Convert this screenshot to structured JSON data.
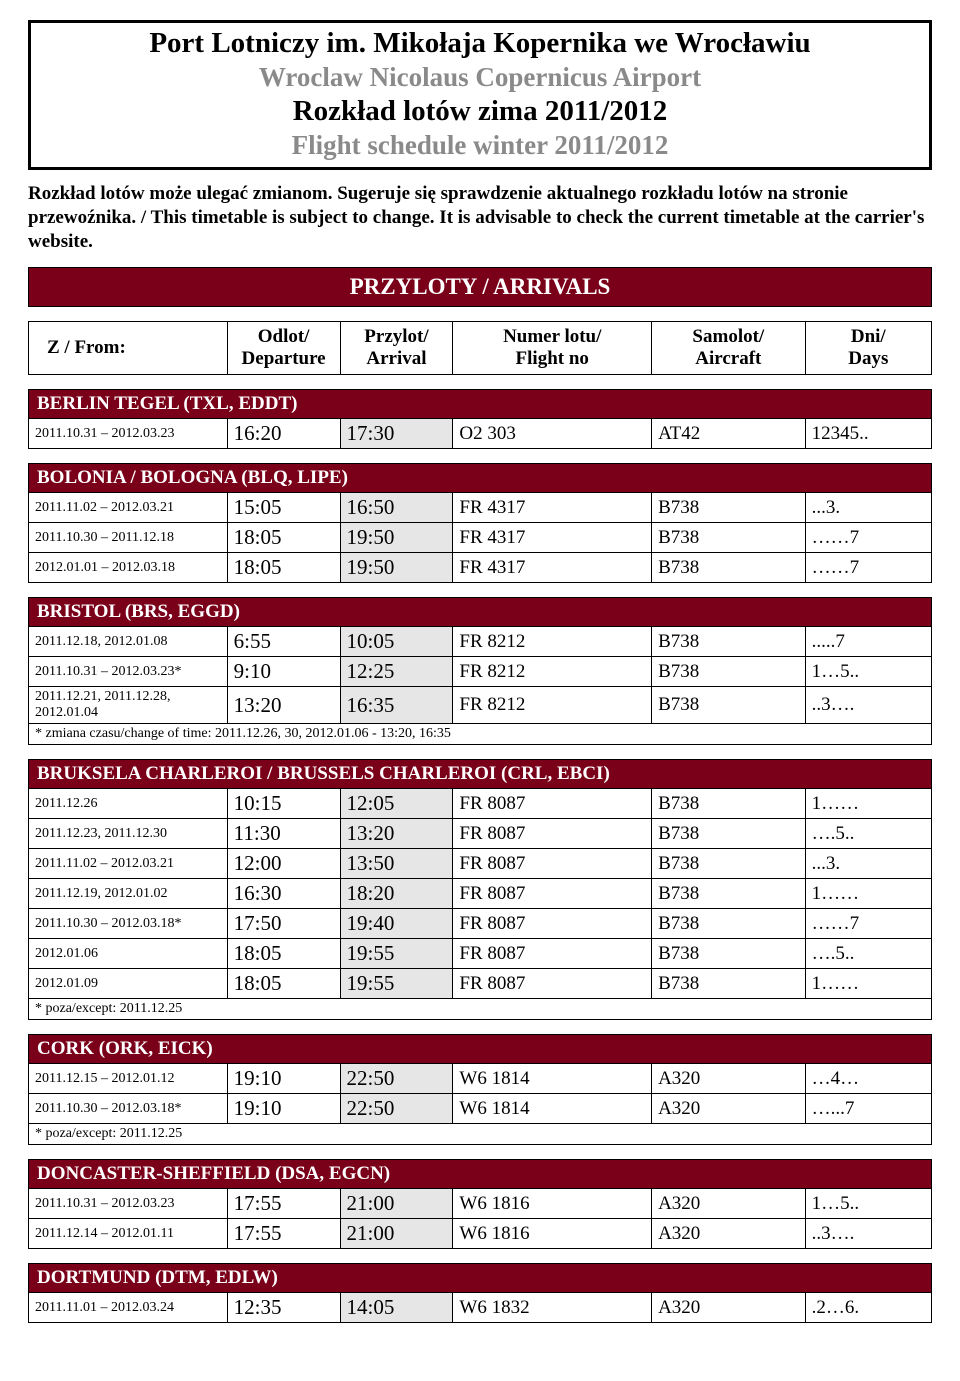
{
  "header": {
    "line1": "Port Lotniczy im. Mikołaja Kopernika we Wrocławiu",
    "line2": "Wroclaw Nicolaus Copernicus Airport",
    "line3": "Rozkład lotów zima 2011/2012",
    "line4": "Flight schedule winter 2011/2012"
  },
  "disclaimer": "Rozkład lotów może ulegać zmianom. Sugeruje się sprawdzenie aktualnego rozkładu lotów na stronie przewoźnika. / This timetable is subject to change. It is advisable to check the current timetable at the carrier's website.",
  "banner": "PRZYLOTY / ARRIVALS",
  "columns": {
    "from": "Z / From:",
    "dep1": "Odlot/",
    "dep2": "Departure",
    "arr1": "Przylot/",
    "arr2": "Arrival",
    "fno1": "Numer lotu/",
    "fno2": "Flight no",
    "ac1": "Samolot/",
    "ac2": "Aircraft",
    "day1": "Dni/",
    "day2": "Days"
  },
  "sections": [
    {
      "title": "BERLIN TEGEL (TXL, EDDT)",
      "rows": [
        {
          "date": "2011.10.31 – 2012.03.23",
          "dep": "16:20",
          "arr": "17:30",
          "fno": "O2 303",
          "ac": "AT42",
          "days": "12345.."
        }
      ]
    },
    {
      "title": "BOLONIA / BOLOGNA (BLQ, LIPE)",
      "rows": [
        {
          "date": "2011.11.02 – 2012.03.21",
          "dep": "15:05",
          "arr": "16:50",
          "fno": "FR 4317",
          "ac": "B738",
          "days": "...3."
        },
        {
          "date": "2011.10.30 – 2011.12.18",
          "dep": "18:05",
          "arr": "19:50",
          "fno": "FR 4317",
          "ac": "B738",
          "days": "……7"
        },
        {
          "date": "2012.01.01 – 2012.03.18",
          "dep": "18:05",
          "arr": "19:50",
          "fno": "FR 4317",
          "ac": "B738",
          "days": "……7"
        }
      ]
    },
    {
      "title": "BRISTOL (BRS, EGGD)",
      "rows": [
        {
          "date": "2011.12.18, 2012.01.08",
          "dep": "6:55",
          "arr": "10:05",
          "fno": "FR 8212",
          "ac": "B738",
          "days": ".....7"
        },
        {
          "date": "2011.10.31 – 2012.03.23*",
          "dep": "9:10",
          "arr": "12:25",
          "fno": "FR 8212",
          "ac": "B738",
          "days": "1…5.."
        },
        {
          "date": "2011.12.21, 2011.12.28, 2012.01.04",
          "dep": "13:20",
          "arr": "16:35",
          "fno": "FR 8212",
          "ac": "B738",
          "days": "..3…."
        }
      ],
      "footnote": "* zmiana czasu/change of time: 2011.12.26, 30, 2012.01.06 - 13:20, 16:35"
    },
    {
      "title": "BRUKSELA CHARLEROI / BRUSSELS CHARLEROI (CRL, EBCI)",
      "rows": [
        {
          "date": "2011.12.26",
          "dep": "10:15",
          "arr": "12:05",
          "fno": "FR 8087",
          "ac": "B738",
          "days": "1……"
        },
        {
          "date": "2011.12.23, 2011.12.30",
          "dep": "11:30",
          "arr": "13:20",
          "fno": "FR 8087",
          "ac": "B738",
          "days": "….5.."
        },
        {
          "date": "2011.11.02 – 2012.03.21",
          "dep": "12:00",
          "arr": "13:50",
          "fno": "FR 8087",
          "ac": "B738",
          "days": "...3."
        },
        {
          "date": "2011.12.19, 2012.01.02",
          "dep": "16:30",
          "arr": "18:20",
          "fno": "FR 8087",
          "ac": "B738",
          "days": "1……"
        },
        {
          "date": "2011.10.30 – 2012.03.18*",
          "dep": "17:50",
          "arr": "19:40",
          "fno": "FR 8087",
          "ac": "B738",
          "days": "……7"
        },
        {
          "date": "2012.01.06",
          "dep": "18:05",
          "arr": "19:55",
          "fno": "FR 8087",
          "ac": "B738",
          "days": "….5.."
        },
        {
          "date": "2012.01.09",
          "dep": "18:05",
          "arr": "19:55",
          "fno": "FR 8087",
          "ac": "B738",
          "days": "1……"
        }
      ],
      "footnote": "* poza/except: 2011.12.25"
    },
    {
      "title": "CORK (ORK, EICK)",
      "rows": [
        {
          "date": "2011.12.15 – 2012.01.12",
          "dep": "19:10",
          "arr": "22:50",
          "fno": "W6 1814",
          "ac": "A320",
          "days": "…4…"
        },
        {
          "date": "2011.10.30 – 2012.03.18*",
          "dep": "19:10",
          "arr": "22:50",
          "fno": "W6 1814",
          "ac": "A320",
          "days": "…...7"
        }
      ],
      "footnote": "* poza/except: 2011.12.25"
    },
    {
      "title": "DONCASTER-SHEFFIELD (DSA, EGCN)",
      "rows": [
        {
          "date": "2011.10.31 – 2012.03.23",
          "dep": "17:55",
          "arr": "21:00",
          "fno": "W6 1816",
          "ac": "A320",
          "days": "1…5.."
        },
        {
          "date": "2011.12.14 – 2012.01.11",
          "dep": "17:55",
          "arr": "21:00",
          "fno": "W6 1816",
          "ac": "A320",
          "days": "..3…."
        }
      ]
    },
    {
      "title": "DORTMUND (DTM, EDLW)",
      "rows": [
        {
          "date": "2011.11.01 – 2012.03.24",
          "dep": "12:35",
          "arr": "14:05",
          "fno": "W6 1832",
          "ac": "A320",
          "days": ".2…6."
        }
      ]
    }
  ]
}
